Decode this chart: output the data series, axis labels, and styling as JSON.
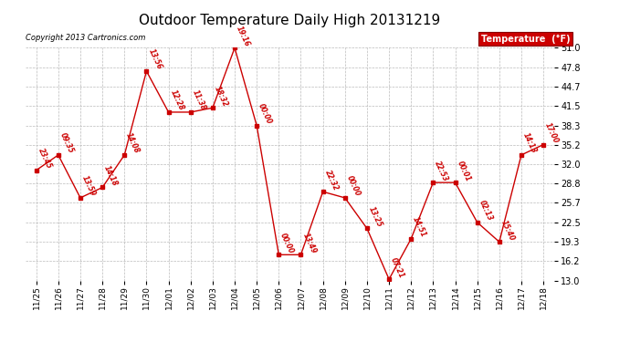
{
  "title": "Outdoor Temperature Daily High 20131219",
  "copyright": "Copyright 2013 Cartronics.com",
  "legend_label": "Temperature  (°F)",
  "x_labels": [
    "11/25",
    "11/26",
    "11/27",
    "11/28",
    "11/29",
    "11/30",
    "12/01",
    "12/02",
    "12/03",
    "12/04",
    "12/05",
    "12/06",
    "12/07",
    "12/08",
    "12/09",
    "12/10",
    "12/11",
    "12/12",
    "12/13",
    "12/14",
    "12/15",
    "12/16",
    "12/17",
    "12/18"
  ],
  "y_values": [
    31.0,
    33.5,
    26.5,
    28.2,
    33.5,
    47.2,
    40.5,
    40.5,
    41.2,
    51.0,
    38.3,
    17.2,
    17.2,
    27.5,
    26.5,
    21.5,
    13.2,
    19.8,
    29.0,
    29.0,
    22.5,
    19.3,
    33.5,
    35.2
  ],
  "point_labels": [
    "23:45",
    "09:35",
    "13:59",
    "14:18",
    "14:08",
    "13:56",
    "12:28",
    "11:38",
    "18:32",
    "19:16",
    "00:00",
    "00:00",
    "13:49",
    "22:32",
    "00:00",
    "13:25",
    "07:21",
    "14:51",
    "22:53",
    "00:01",
    "02:13",
    "15:40",
    "14:13",
    "17:00"
  ],
  "ylim_min": 13.0,
  "ylim_max": 51.0,
  "yticks": [
    13.0,
    16.2,
    19.3,
    22.5,
    25.7,
    28.8,
    32.0,
    35.2,
    38.3,
    41.5,
    44.7,
    47.8,
    51.0
  ],
  "line_color": "#cc0000",
  "marker_color": "#cc0000",
  "bg_color": "#ffffff",
  "grid_color": "#bbbbbb",
  "label_color": "#cc0000",
  "title_fontsize": 11,
  "legend_bg": "#cc0000",
  "legend_text_color": "#ffffff"
}
